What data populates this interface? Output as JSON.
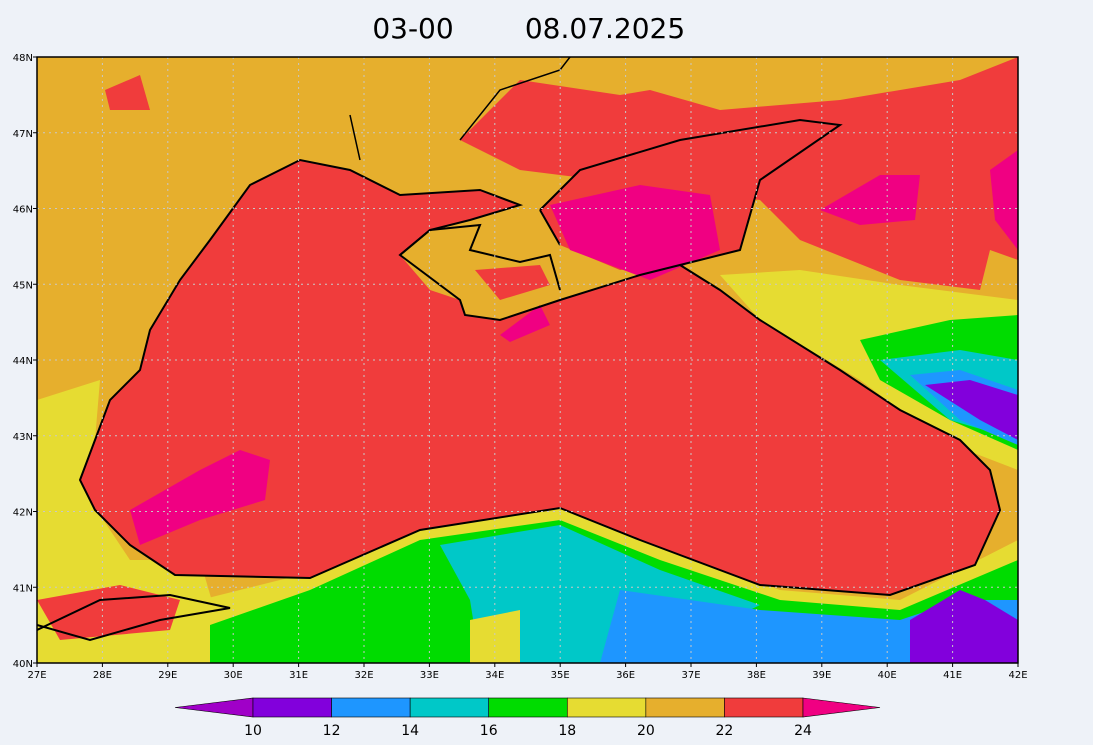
{
  "title": {
    "time": "03-00",
    "date": "08.07.2025"
  },
  "map": {
    "lat_labels": [
      "48N",
      "47N",
      "46N",
      "45N",
      "44N",
      "43N",
      "42N",
      "41N",
      "40N"
    ],
    "lon_labels": [
      "27E",
      "28E",
      "29E",
      "30E",
      "31E",
      "32E",
      "33E",
      "34E",
      "35E",
      "36E",
      "37E",
      "38E",
      "39E",
      "40E",
      "41E",
      "42E"
    ]
  },
  "colorbar": {
    "labels": [
      "10",
      "12",
      "14",
      "16",
      "18",
      "20",
      "22",
      "24"
    ],
    "colors": [
      "#a000c8",
      "#8200dc",
      "#1e96ff",
      "#00c8c8",
      "#00dc00",
      "#e6dc32",
      "#e6af2d",
      "#f03c3c",
      "#f00082"
    ]
  }
}
